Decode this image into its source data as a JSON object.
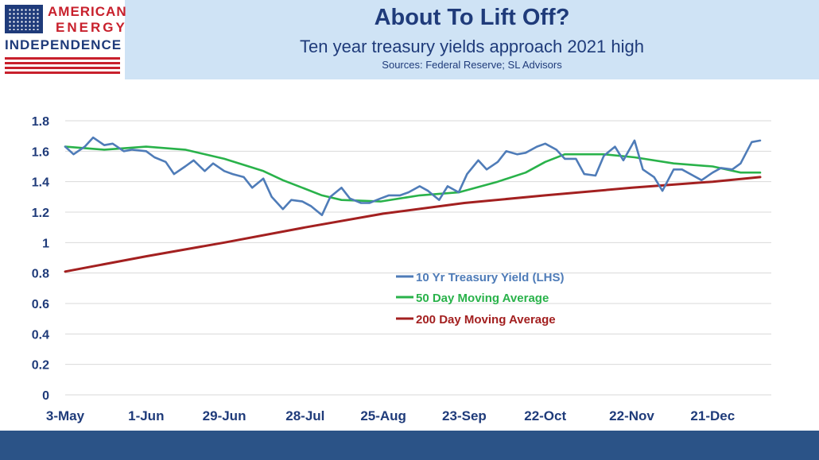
{
  "header": {
    "title": "About To Lift Off?",
    "subtitle": "Ten year treasury yields approach 2021 high",
    "sources": "Sources: Federal Reserve; SL Advisors"
  },
  "logo": {
    "line1": "AMERICAN",
    "line2": "ENERGY",
    "line3": "INDEPENDENCE",
    "flag_icon": "us-flag-icon"
  },
  "colors": {
    "header_band": "#cfe3f5",
    "footer_band": "#2b5387",
    "title_text": "#1f3b7a",
    "series_yield": "#4f7cb8",
    "series_50d": "#29b24a",
    "series_200d": "#a32020"
  },
  "chart_data": {
    "type": "line",
    "title": "",
    "xlabel": "",
    "ylabel": "",
    "ylim": [
      0,
      1.8
    ],
    "yticks": [
      "0",
      "0.2",
      "0.4",
      "0.6",
      "0.8",
      "1",
      "1.2",
      "1.4",
      "1.6",
      "1.8"
    ],
    "xlim": [
      "3-May",
      "11-Jan"
    ],
    "xtick_labels": [
      "3-May",
      "1-Jun",
      "29-Jun",
      "28-Jul",
      "25-Aug",
      "23-Sep",
      "22-Oct",
      "22-Nov",
      "21-Dec"
    ],
    "grid": "horizontal",
    "legend_position": "center",
    "series": [
      {
        "name": "10 Yr Treasury Yield (LHS)",
        "points": [
          [
            "3-May",
            1.63
          ],
          [
            "6-May",
            1.58
          ],
          [
            "10-May",
            1.63
          ],
          [
            "13-May",
            1.69
          ],
          [
            "17-May",
            1.64
          ],
          [
            "20-May",
            1.65
          ],
          [
            "24-May",
            1.6
          ],
          [
            "27-May",
            1.61
          ],
          [
            "1-Jun",
            1.6
          ],
          [
            "4-Jun",
            1.56
          ],
          [
            "8-Jun",
            1.53
          ],
          [
            "11-Jun",
            1.45
          ],
          [
            "15-Jun",
            1.5
          ],
          [
            "18-Jun",
            1.54
          ],
          [
            "22-Jun",
            1.47
          ],
          [
            "25-Jun",
            1.52
          ],
          [
            "29-Jun",
            1.47
          ],
          [
            "2-Jul",
            1.45
          ],
          [
            "6-Jul",
            1.43
          ],
          [
            "9-Jul",
            1.36
          ],
          [
            "13-Jul",
            1.42
          ],
          [
            "16-Jul",
            1.3
          ],
          [
            "20-Jul",
            1.22
          ],
          [
            "23-Jul",
            1.28
          ],
          [
            "27-Jul",
            1.27
          ],
          [
            "30-Jul",
            1.24
          ],
          [
            "3-Aug",
            1.18
          ],
          [
            "6-Aug",
            1.3
          ],
          [
            "10-Aug",
            1.36
          ],
          [
            "13-Aug",
            1.29
          ],
          [
            "17-Aug",
            1.26
          ],
          [
            "20-Aug",
            1.26
          ],
          [
            "24-Aug",
            1.29
          ],
          [
            "27-Aug",
            1.31
          ],
          [
            "31-Aug",
            1.31
          ],
          [
            "3-Sep",
            1.33
          ],
          [
            "7-Sep",
            1.37
          ],
          [
            "10-Sep",
            1.34
          ],
          [
            "14-Sep",
            1.28
          ],
          [
            "17-Sep",
            1.37
          ],
          [
            "21-Sep",
            1.33
          ],
          [
            "24-Sep",
            1.45
          ],
          [
            "28-Sep",
            1.54
          ],
          [
            "1-Oct",
            1.48
          ],
          [
            "5-Oct",
            1.53
          ],
          [
            "8-Oct",
            1.6
          ],
          [
            "12-Oct",
            1.58
          ],
          [
            "15-Oct",
            1.59
          ],
          [
            "19-Oct",
            1.63
          ],
          [
            "22-Oct",
            1.65
          ],
          [
            "26-Oct",
            1.61
          ],
          [
            "29-Oct",
            1.55
          ],
          [
            "2-Nov",
            1.55
          ],
          [
            "5-Nov",
            1.45
          ],
          [
            "9-Nov",
            1.44
          ],
          [
            "12-Nov",
            1.57
          ],
          [
            "16-Nov",
            1.63
          ],
          [
            "19-Nov",
            1.54
          ],
          [
            "23-Nov",
            1.67
          ],
          [
            "26-Nov",
            1.48
          ],
          [
            "30-Nov",
            1.43
          ],
          [
            "3-Dec",
            1.34
          ],
          [
            "7-Dec",
            1.48
          ],
          [
            "10-Dec",
            1.48
          ],
          [
            "14-Dec",
            1.44
          ],
          [
            "17-Dec",
            1.41
          ],
          [
            "21-Dec",
            1.46
          ],
          [
            "24-Dec",
            1.49
          ],
          [
            "28-Dec",
            1.48
          ],
          [
            "31-Dec",
            1.52
          ],
          [
            "4-Jan",
            1.66
          ],
          [
            "7-Jan",
            1.67
          ]
        ]
      },
      {
        "name": "50 Day Moving Average",
        "points": [
          [
            "3-May",
            1.63
          ],
          [
            "17-May",
            1.61
          ],
          [
            "1-Jun",
            1.63
          ],
          [
            "15-Jun",
            1.61
          ],
          [
            "29-Jun",
            1.55
          ],
          [
            "13-Jul",
            1.47
          ],
          [
            "20-Jul",
            1.41
          ],
          [
            "27-Jul",
            1.36
          ],
          [
            "3-Aug",
            1.31
          ],
          [
            "10-Aug",
            1.28
          ],
          [
            "24-Aug",
            1.27
          ],
          [
            "7-Sep",
            1.31
          ],
          [
            "21-Sep",
            1.33
          ],
          [
            "5-Oct",
            1.4
          ],
          [
            "15-Oct",
            1.46
          ],
          [
            "22-Oct",
            1.53
          ],
          [
            "29-Oct",
            1.58
          ],
          [
            "12-Nov",
            1.58
          ],
          [
            "23-Nov",
            1.56
          ],
          [
            "7-Dec",
            1.52
          ],
          [
            "21-Dec",
            1.5
          ],
          [
            "31-Dec",
            1.46
          ],
          [
            "7-Jan",
            1.46
          ]
        ]
      },
      {
        "name": "200 Day Moving Average",
        "points": [
          [
            "3-May",
            0.81
          ],
          [
            "1-Jun",
            0.91
          ],
          [
            "29-Jun",
            1.0
          ],
          [
            "28-Jul",
            1.1
          ],
          [
            "25-Aug",
            1.19
          ],
          [
            "23-Sep",
            1.26
          ],
          [
            "22-Oct",
            1.31
          ],
          [
            "22-Nov",
            1.36
          ],
          [
            "21-Dec",
            1.4
          ],
          [
            "7-Jan",
            1.43
          ]
        ]
      }
    ]
  }
}
